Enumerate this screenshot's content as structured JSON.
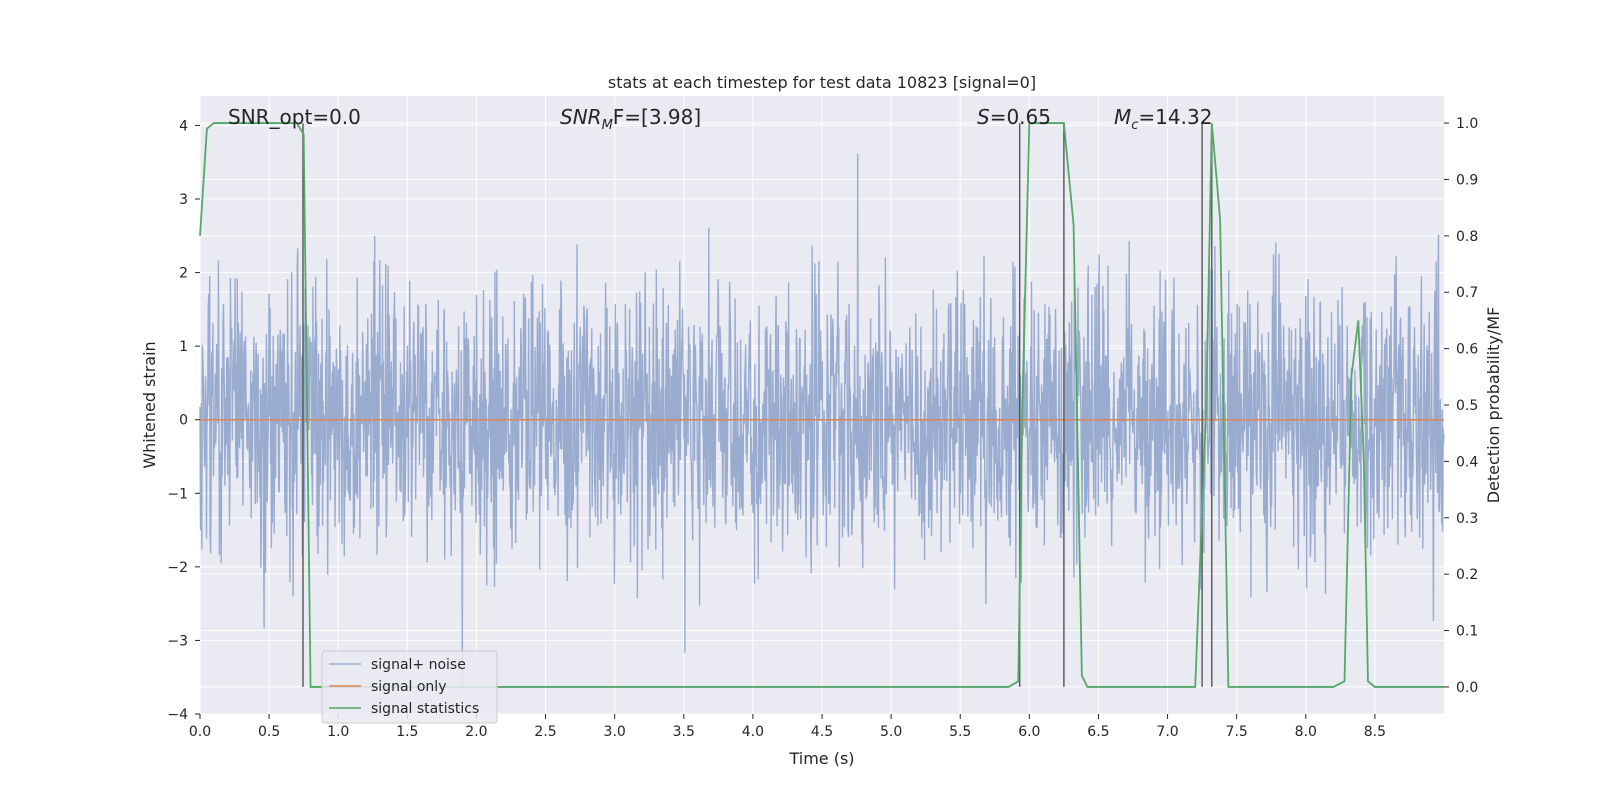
{
  "chart_data": {
    "type": "line",
    "title": "stats at each timestep for test data 10823 [signal=0]",
    "xlabel": "Time (s)",
    "ylabel_left": "Whitened strain",
    "ylabel_right": "Detection probability/MF",
    "xlim": [
      0.0,
      9.0
    ],
    "ylim_left": [
      -4.0,
      4.4
    ],
    "ylim_right": [
      -0.048,
      1.048
    ],
    "x_ticks": [
      "0.0",
      "0.5",
      "1.0",
      "1.5",
      "2.0",
      "2.5",
      "3.0",
      "3.5",
      "4.0",
      "4.5",
      "5.0",
      "5.5",
      "6.0",
      "6.5",
      "7.0",
      "7.5",
      "8.0",
      "8.5"
    ],
    "y_left_ticks": [
      "−4",
      "−3",
      "−2",
      "−1",
      "0",
      "1",
      "2",
      "3",
      "4"
    ],
    "y_right_ticks": [
      "0.0",
      "0.1",
      "0.2",
      "0.3",
      "0.4",
      "0.5",
      "0.6",
      "0.7",
      "0.8",
      "0.9",
      "1.0"
    ],
    "grid": true,
    "annotations": {
      "snr_opt": "SNR_opt=0.0",
      "snr_mf_main": "SNR",
      "snr_mf_sub": "M",
      "snr_mf_rest": "F=[3.98]",
      "s_main": "S",
      "s_rest": "=0.65",
      "mc_main": "M",
      "mc_sub": "c",
      "mc_rest": "=14.32"
    },
    "legend": {
      "placement": "lower-left",
      "entries": [
        "signal+ noise",
        "signal only",
        "signal statistics"
      ]
    },
    "colors": {
      "noise": "#99acd0",
      "signal_only": "#dd8452",
      "statistics": "#55a868",
      "markers": "#555555",
      "background": "#eaeaf2",
      "grid": "#ffffff"
    },
    "series": [
      {
        "name": "signal+ noise",
        "description_axis": "left",
        "noise_envelope": {
          "typical_amplitude": 1.5,
          "max_peak": 4.0,
          "min_peak": -3.65
        }
      },
      {
        "name": "signal only",
        "description_axis": "left",
        "x": [
          0.0,
          9.0
        ],
        "y": [
          0.0,
          0.0
        ]
      },
      {
        "name": "signal statistics",
        "description_axis": "right",
        "x": [
          0.0,
          0.05,
          0.1,
          0.15,
          0.7,
          0.75,
          0.8,
          0.85,
          5.85,
          5.92,
          5.95,
          6.0,
          6.25,
          6.32,
          6.38,
          6.42,
          7.2,
          7.28,
          7.32,
          7.38,
          7.44,
          8.2,
          8.28,
          8.33,
          8.38,
          8.42,
          8.45,
          8.5,
          9.0
        ],
        "y": [
          0.8,
          0.99,
          1.0,
          1.0,
          1.0,
          0.98,
          0.0,
          0.0,
          0.0,
          0.01,
          0.5,
          1.0,
          1.0,
          0.82,
          0.02,
          0.0,
          0.0,
          0.5,
          1.0,
          0.83,
          0.0,
          0.0,
          0.01,
          0.55,
          0.65,
          0.4,
          0.01,
          0.0,
          0.0
        ]
      }
    ],
    "vertical_markers_x": [
      0.745,
      5.93,
      6.25,
      7.25,
      7.32
    ]
  }
}
